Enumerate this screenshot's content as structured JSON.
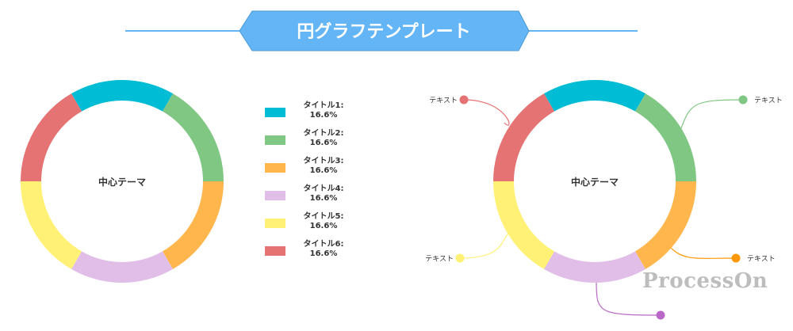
{
  "header": {
    "title": "円グラフテンプレート",
    "color": "#64b5f6"
  },
  "colors": [
    "#00bcd4",
    "#81c784",
    "#ffb74d",
    "#e1bee7",
    "#fff176",
    "#e57373"
  ],
  "chart_data": [
    {
      "type": "pie",
      "variant": "donut",
      "center_label": "中心テーマ",
      "categories": [
        "タイトル1",
        "タイトル2",
        "タイトル3",
        "タイトル4",
        "タイトル5",
        "タイトル6"
      ],
      "values": [
        16.6,
        16.6,
        16.6,
        16.6,
        16.6,
        16.6
      ],
      "legend": {
        "placement": "right",
        "items": [
          {
            "title": "タイトル1:",
            "value": "16.6%"
          },
          {
            "title": "タイトル2:",
            "value": "16.6%"
          },
          {
            "title": "タイトル3:",
            "value": "16.6%"
          },
          {
            "title": "タイトル4:",
            "value": "16.6%"
          },
          {
            "title": "タイトル5:",
            "value": "16.6%"
          },
          {
            "title": "タイトル6:",
            "value": "16.6%"
          }
        ]
      }
    },
    {
      "type": "pie",
      "variant": "donut",
      "center_label": "中心テーマ",
      "values": [
        16.6,
        16.6,
        16.6,
        16.6,
        16.6,
        16.6
      ],
      "callouts": [
        {
          "text": "テキスト",
          "color": "#e57373"
        },
        {
          "text": "テキスト",
          "color": "#81c784"
        },
        {
          "text": "テキスト",
          "color": "#ff9800"
        },
        {
          "text": "テキスト",
          "color": "#fff176"
        },
        {
          "text": "",
          "color": "#ba68c8"
        }
      ]
    }
  ],
  "watermark": "ProcessOn"
}
